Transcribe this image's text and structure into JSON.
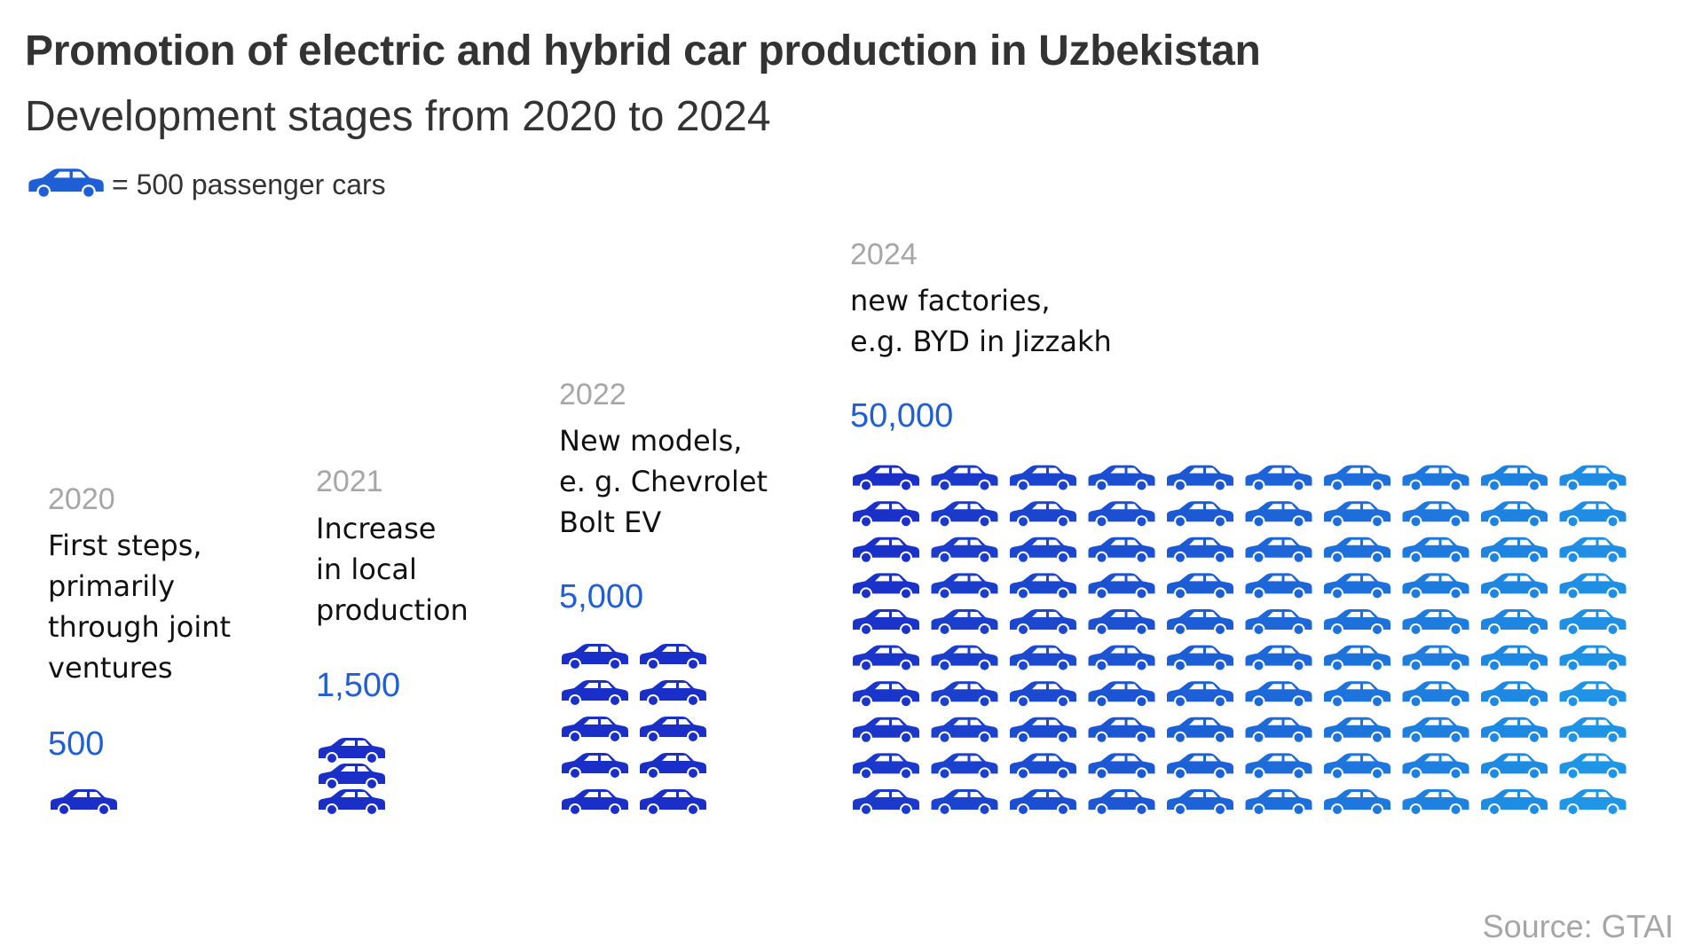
{
  "title": "Promotion of electric and hybrid car production in Uzbekistan",
  "subtitle": "Development stages from 2020 to 2024",
  "legend": {
    "icon": "car-icon",
    "text": "= 500 passenger cars"
  },
  "source": "Source: GTAI",
  "colors": {
    "dark_blue": "#1a2fc8",
    "light_blue": "#1f96e6",
    "count_blue": "#1f5fd6",
    "year_gray": "#a6a6a6"
  },
  "chart_data": {
    "type": "pictogram",
    "unit_value": 500,
    "unit_label": "passenger cars",
    "stages": [
      {
        "year": "2020",
        "description": "First steps,\nprimarily\nthrough joint\nventures",
        "value": 500,
        "value_label": "500"
      },
      {
        "year": "2021",
        "description": "Increase\nin local\nproduction",
        "value": 1500,
        "value_label": "1,500"
      },
      {
        "year": "2022",
        "description": "New models,\ne. g. Chevrolet\nBolt EV",
        "value": 5000,
        "value_label": "5,000"
      },
      {
        "year": "2024",
        "description": "new factories,\ne.g. BYD in Jizzakh",
        "value": 50000,
        "value_label": "50,000"
      }
    ]
  }
}
